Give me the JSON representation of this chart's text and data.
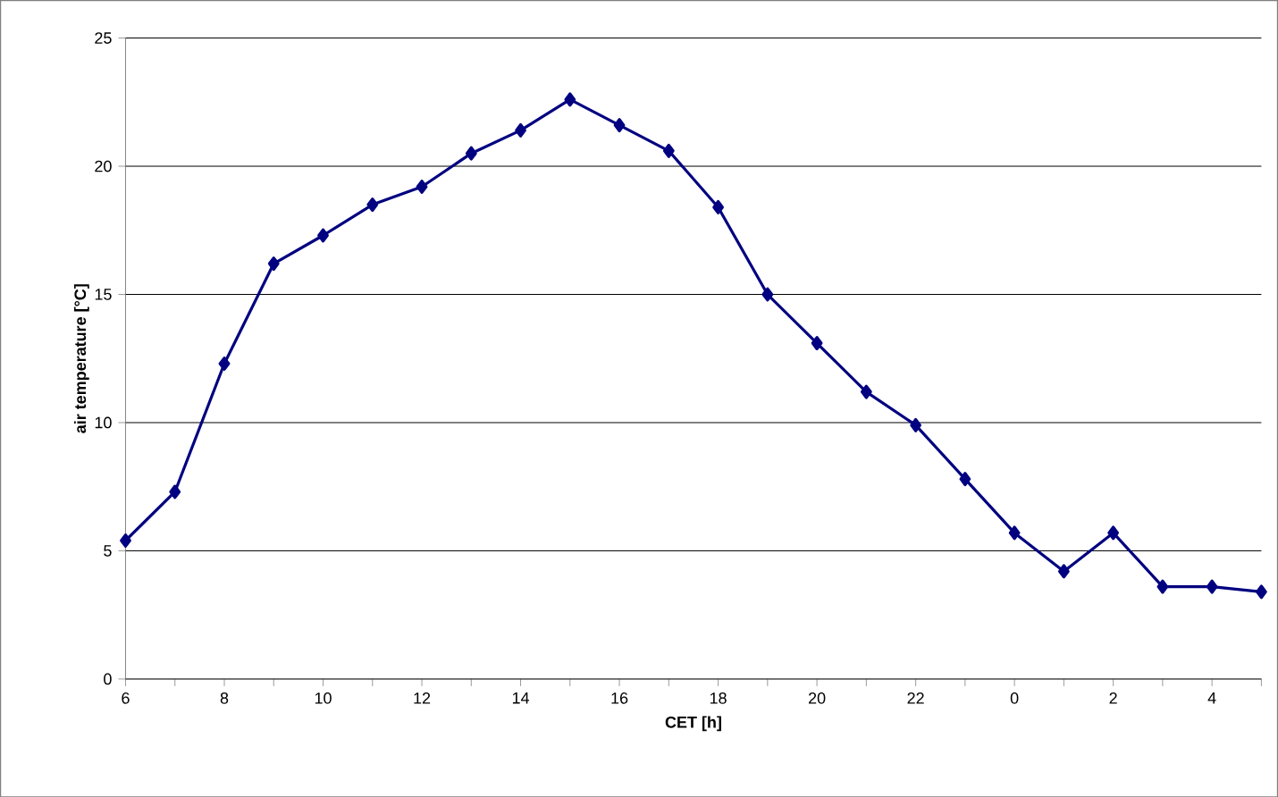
{
  "chart_data": {
    "type": "line",
    "xlabel": "CET [h]",
    "ylabel": "air temperature [°C]",
    "categories": [
      "6",
      null,
      "8",
      null,
      "10",
      null,
      "12",
      null,
      "14",
      null,
      "16",
      null,
      "18",
      null,
      "20",
      null,
      "22",
      null,
      "0",
      null,
      "2",
      null,
      "4",
      null
    ],
    "series": [
      {
        "color": "#000080",
        "values": [
          5.4,
          7.3,
          12.3,
          16.2,
          17.3,
          18.5,
          19.2,
          20.5,
          21.4,
          22.6,
          21.6,
          20.6,
          18.4,
          15.0,
          13.1,
          11.2,
          9.9,
          7.8,
          5.7,
          4.2,
          5.7,
          3.6,
          3.6,
          3.4
        ]
      }
    ],
    "ylim": [
      0,
      25
    ],
    "yticks": [
      0,
      5,
      10,
      15,
      20,
      25
    ],
    "grid": "y",
    "marker": "diamond",
    "line_style": "solid"
  }
}
